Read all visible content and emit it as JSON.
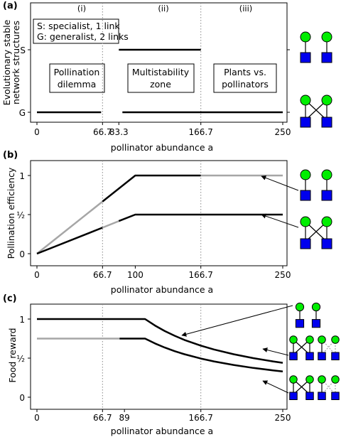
{
  "colors": {
    "black": "#000000",
    "grey": "#a6a6a6",
    "vline": "#888888",
    "node_green": "#00ee00",
    "node_blue": "#0000ee"
  },
  "icons": [
    "specialist-network-icon",
    "generalist-network-icon"
  ],
  "chart_data": [
    {
      "type": "line",
      "panel": "(a)",
      "ylabel": "Evolutionary stable network structures",
      "xlabel": "pollinator abundance a",
      "xlim": [
        0,
        250
      ],
      "x_ticks": [
        0,
        66.7,
        83.3,
        166.7,
        250
      ],
      "y_categories": [
        "G",
        "S"
      ],
      "regions": [
        "(i)",
        "(ii)",
        "(iii)"
      ],
      "legend_lines": [
        "S: specialist, 1 link",
        "G: generalist, 2 links"
      ],
      "boxes": [
        {
          "lines": [
            "Pollination",
            "dilemma"
          ]
        },
        {
          "lines": [
            "Multistability",
            "zone"
          ]
        },
        {
          "lines": [
            "Plants vs.",
            "pollinators"
          ]
        }
      ],
      "series": [
        {
          "category": "S",
          "x": [
            83.3,
            166.7
          ],
          "color": "#000000"
        },
        {
          "category": "G",
          "x": [
            0,
            66.7
          ],
          "color": "#000000"
        },
        {
          "category": "G",
          "x": [
            83.3,
            250
          ],
          "color": "#000000"
        }
      ],
      "vlines": [
        66.7,
        166.7
      ]
    },
    {
      "type": "line",
      "panel": "(b)",
      "ylabel": "Pollination efficiency",
      "xlabel": "pollinator abundance a",
      "xlim": [
        0,
        250
      ],
      "ylim": [
        0,
        1
      ],
      "x_ticks": [
        0,
        66.7,
        100,
        166.7,
        250
      ],
      "y_ticks": [
        "0",
        "½",
        "1"
      ],
      "series": [
        {
          "x": [
            0,
            66.7
          ],
          "y": [
            0,
            0.667
          ],
          "color": "#a6a6a6"
        },
        {
          "x": [
            66.7,
            100,
            166.7
          ],
          "y": [
            0.667,
            1,
            1
          ],
          "color": "#000000"
        },
        {
          "x": [
            166.7,
            250
          ],
          "y": [
            1,
            1
          ],
          "color": "#a6a6a6"
        },
        {
          "x": [
            0,
            66.7
          ],
          "y": [
            0,
            0.333
          ],
          "color": "#000000"
        },
        {
          "x": [
            66.7,
            83.3
          ],
          "y": [
            0.333,
            0.417
          ],
          "color": "#a6a6a6"
        },
        {
          "x": [
            83.3,
            100,
            250
          ],
          "y": [
            0.417,
            0.5,
            0.5
          ],
          "color": "#000000"
        }
      ],
      "vlines": [
        66.7,
        166.7
      ]
    },
    {
      "type": "line",
      "panel": "(c)",
      "ylabel": "Food reward",
      "xlabel": "pollinator abundance a",
      "xlim": [
        0,
        250
      ],
      "ylim": [
        0,
        1
      ],
      "x_ticks": [
        0,
        66.7,
        89,
        166.7,
        250
      ],
      "y_ticks": [
        "0",
        "½",
        "1"
      ],
      "series": [
        {
          "x": [
            0,
            110,
            120,
            130,
            140,
            150,
            166.7,
            180,
            200,
            220,
            240,
            250
          ],
          "y": [
            1,
            1,
            0.917,
            0.846,
            0.786,
            0.733,
            0.66,
            0.611,
            0.55,
            0.5,
            0.458,
            0.44
          ],
          "color": "#000000"
        },
        {
          "x": [
            0,
            84
          ],
          "y": [
            0.75,
            0.75
          ],
          "color": "#a6a6a6"
        },
        {
          "x": [
            84,
            110,
            120,
            130,
            140,
            150,
            166.7,
            180,
            200,
            220,
            240,
            250
          ],
          "y": [
            0.75,
            0.75,
            0.688,
            0.635,
            0.589,
            0.55,
            0.495,
            0.458,
            0.413,
            0.375,
            0.344,
            0.33
          ],
          "color": "#000000"
        }
      ],
      "vlines": [
        66.7,
        166.7
      ]
    }
  ]
}
